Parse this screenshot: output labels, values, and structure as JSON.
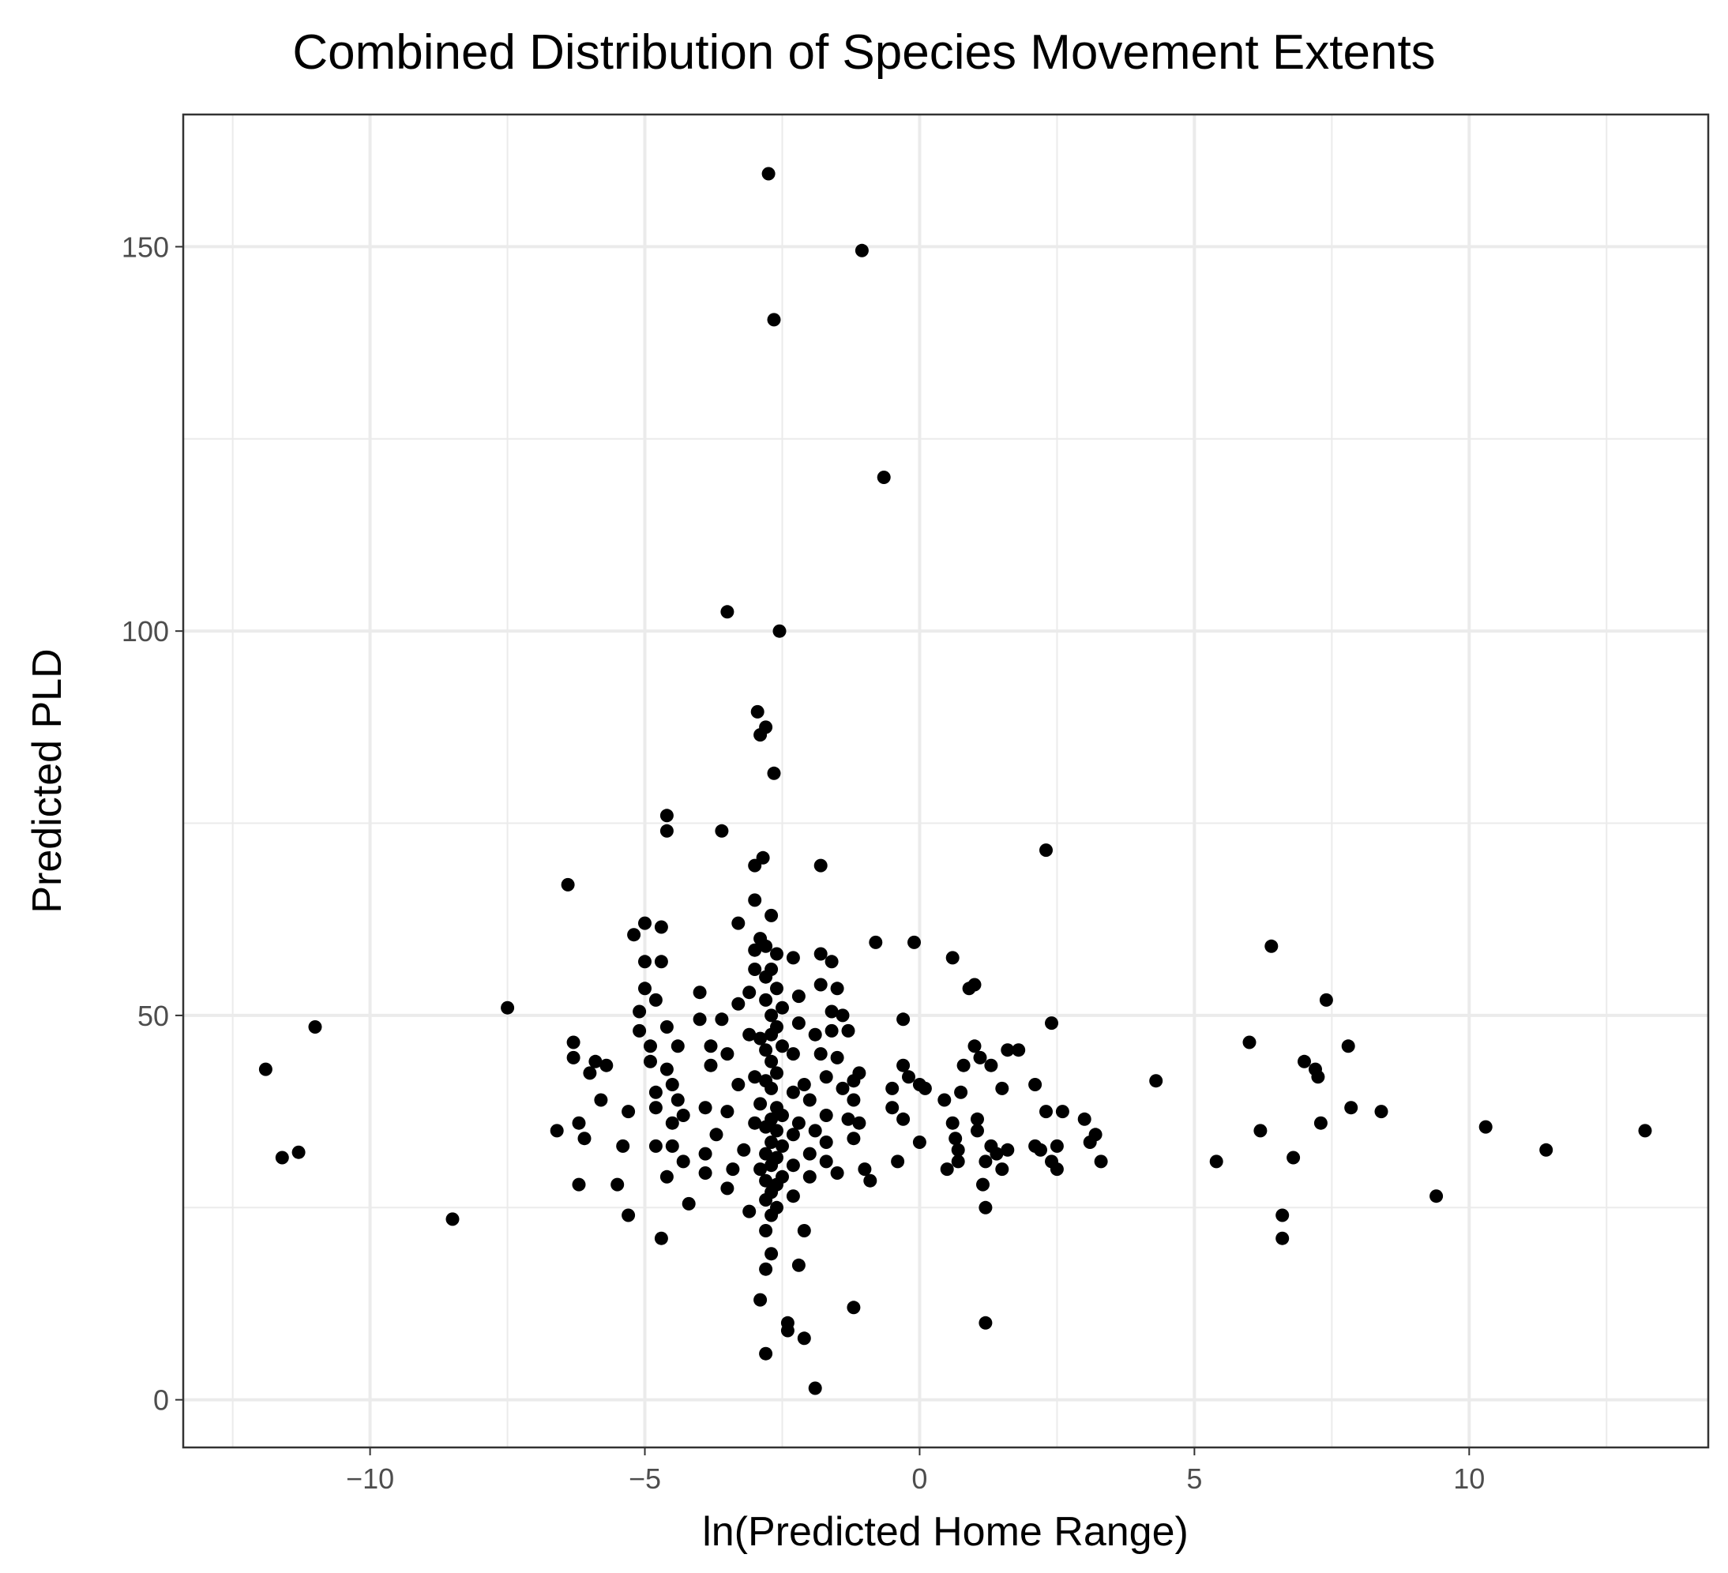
{
  "chart_data": {
    "type": "scatter",
    "title": "Combined Distribution of Species Movement Extents",
    "xlabel": "ln(Predicted Home Range)",
    "ylabel": "Predicted PLD",
    "xlim": [
      -13.4,
      14.35
    ],
    "ylim": [
      -6.2,
      167.2
    ],
    "xticks": [
      -10,
      -5,
      0,
      5,
      10
    ],
    "xtick_labels": [
      "−10",
      "−5",
      "0",
      "5",
      "10"
    ],
    "xminor": [
      -12.5,
      -7.5,
      -2.5,
      2.5,
      7.5,
      12.5
    ],
    "yticks": [
      0,
      50,
      100,
      150
    ],
    "ytick_labels": [
      "0",
      "50",
      "100",
      "150"
    ],
    "yminor": [
      25,
      75,
      125
    ],
    "grid": true,
    "legend": "none",
    "point_color": "#000000",
    "points": [
      [
        -11.9,
        43
      ],
      [
        -11.6,
        31.5
      ],
      [
        -11.3,
        32.2
      ],
      [
        -11.0,
        48.5
      ],
      [
        -8.5,
        23.5
      ],
      [
        -7.5,
        51
      ],
      [
        -6.6,
        35
      ],
      [
        -6.4,
        67
      ],
      [
        -6.3,
        46.5
      ],
      [
        -6.3,
        44.5
      ],
      [
        -6.2,
        36
      ],
      [
        -6.2,
        28
      ],
      [
        -6.1,
        34
      ],
      [
        -6.0,
        42.5
      ],
      [
        -5.9,
        44
      ],
      [
        -5.8,
        39
      ],
      [
        -5.7,
        43.5
      ],
      [
        -5.5,
        28
      ],
      [
        -5.4,
        33
      ],
      [
        -5.3,
        37.5
      ],
      [
        -5.3,
        24
      ],
      [
        -5.2,
        60.5
      ],
      [
        -5.1,
        50.5
      ],
      [
        -5.1,
        48
      ],
      [
        -5.0,
        57
      ],
      [
        -5.0,
        62
      ],
      [
        -5.0,
        53.5
      ],
      [
        -4.9,
        44
      ],
      [
        -4.9,
        46
      ],
      [
        -4.8,
        40
      ],
      [
        -4.8,
        52
      ],
      [
        -4.8,
        38
      ],
      [
        -4.8,
        33
      ],
      [
        -4.7,
        57
      ],
      [
        -4.7,
        61.5
      ],
      [
        -4.7,
        21
      ],
      [
        -4.6,
        48.5
      ],
      [
        -4.6,
        76
      ],
      [
        -4.6,
        74
      ],
      [
        -4.6,
        43
      ],
      [
        -4.6,
        29
      ],
      [
        -4.5,
        41
      ],
      [
        -4.5,
        36
      ],
      [
        -4.5,
        33
      ],
      [
        -4.4,
        39
      ],
      [
        -4.4,
        46
      ],
      [
        -4.3,
        31
      ],
      [
        -4.3,
        37
      ],
      [
        -4.2,
        25.5
      ],
      [
        -4.0,
        49.5
      ],
      [
        -4.0,
        53
      ],
      [
        -3.9,
        38
      ],
      [
        -3.9,
        32
      ],
      [
        -3.9,
        29.5
      ],
      [
        -3.8,
        46
      ],
      [
        -3.8,
        43.5
      ],
      [
        -3.7,
        34.5
      ],
      [
        -3.6,
        49.5
      ],
      [
        -3.6,
        74
      ],
      [
        -3.5,
        27.5
      ],
      [
        -3.5,
        45
      ],
      [
        -3.5,
        102.5
      ],
      [
        -3.5,
        37.5
      ],
      [
        -3.4,
        30
      ],
      [
        -3.3,
        62
      ],
      [
        -3.3,
        51.5
      ],
      [
        -3.3,
        41
      ],
      [
        -3.2,
        32.5
      ],
      [
        -3.1,
        47.5
      ],
      [
        -3.1,
        53
      ],
      [
        -3.1,
        24.5
      ],
      [
        -3.0,
        69.5
      ],
      [
        -3.0,
        65
      ],
      [
        -3.0,
        56
      ],
      [
        -3.0,
        58.5
      ],
      [
        -3.0,
        42
      ],
      [
        -3.0,
        36
      ],
      [
        -2.95,
        89.5
      ],
      [
        -2.9,
        86.5
      ],
      [
        -2.9,
        60
      ],
      [
        -2.9,
        47
      ],
      [
        -2.9,
        38.5
      ],
      [
        -2.9,
        30
      ],
      [
        -2.9,
        13
      ],
      [
        -2.85,
        70.5
      ],
      [
        -2.8,
        87.5
      ],
      [
        -2.8,
        59
      ],
      [
        -2.8,
        55
      ],
      [
        -2.8,
        52
      ],
      [
        -2.8,
        45.5
      ],
      [
        -2.8,
        41.5
      ],
      [
        -2.8,
        35.5
      ],
      [
        -2.8,
        32
      ],
      [
        -2.8,
        28.5
      ],
      [
        -2.8,
        26
      ],
      [
        -2.8,
        22
      ],
      [
        -2.8,
        17
      ],
      [
        -2.8,
        6
      ],
      [
        -2.75,
        159.5
      ],
      [
        -2.7,
        63
      ],
      [
        -2.7,
        56
      ],
      [
        -2.7,
        50
      ],
      [
        -2.7,
        47.5
      ],
      [
        -2.7,
        44
      ],
      [
        -2.7,
        40.5
      ],
      [
        -2.7,
        36.5
      ],
      [
        -2.7,
        33.5
      ],
      [
        -2.7,
        30.5
      ],
      [
        -2.7,
        27
      ],
      [
        -2.7,
        24
      ],
      [
        -2.7,
        19
      ],
      [
        -2.65,
        140.5
      ],
      [
        -2.65,
        81.5
      ],
      [
        -2.6,
        58
      ],
      [
        -2.6,
        53.5
      ],
      [
        -2.6,
        48.5
      ],
      [
        -2.6,
        42.5
      ],
      [
        -2.6,
        38
      ],
      [
        -2.6,
        35
      ],
      [
        -2.6,
        31.5
      ],
      [
        -2.6,
        28
      ],
      [
        -2.6,
        25
      ],
      [
        -2.55,
        100
      ],
      [
        -2.5,
        51
      ],
      [
        -2.5,
        46
      ],
      [
        -2.5,
        37
      ],
      [
        -2.5,
        33
      ],
      [
        -2.5,
        29
      ],
      [
        -2.4,
        10
      ],
      [
        -2.4,
        9
      ],
      [
        -2.3,
        57.5
      ],
      [
        -2.3,
        45
      ],
      [
        -2.3,
        40
      ],
      [
        -2.3,
        34.5
      ],
      [
        -2.3,
        30.5
      ],
      [
        -2.3,
        26.5
      ],
      [
        -2.2,
        52.5
      ],
      [
        -2.2,
        49
      ],
      [
        -2.2,
        36
      ],
      [
        -2.2,
        17.5
      ],
      [
        -2.1,
        41
      ],
      [
        -2.1,
        22
      ],
      [
        -2.1,
        8
      ],
      [
        -2.0,
        39
      ],
      [
        -2.0,
        32
      ],
      [
        -2.0,
        29
      ],
      [
        -1.9,
        1.5
      ],
      [
        -1.9,
        47.5
      ],
      [
        -1.9,
        35
      ],
      [
        -1.8,
        69.5
      ],
      [
        -1.8,
        58
      ],
      [
        -1.8,
        54
      ],
      [
        -1.8,
        45
      ],
      [
        -1.7,
        42
      ],
      [
        -1.7,
        37
      ],
      [
        -1.7,
        33.5
      ],
      [
        -1.7,
        31
      ],
      [
        -1.6,
        57
      ],
      [
        -1.6,
        50.5
      ],
      [
        -1.6,
        48
      ],
      [
        -1.5,
        53.5
      ],
      [
        -1.5,
        44.5
      ],
      [
        -1.5,
        29.5
      ],
      [
        -1.4,
        50
      ],
      [
        -1.4,
        40.5
      ],
      [
        -1.3,
        48
      ],
      [
        -1.3,
        36.5
      ],
      [
        -1.2,
        41.5
      ],
      [
        -1.2,
        39
      ],
      [
        -1.2,
        34
      ],
      [
        -1.2,
        12
      ],
      [
        -1.1,
        42.5
      ],
      [
        -1.1,
        36
      ],
      [
        -1.05,
        149.5
      ],
      [
        -1.0,
        30
      ],
      [
        -0.9,
        28.5
      ],
      [
        -0.8,
        59.5
      ],
      [
        -0.65,
        120
      ],
      [
        -0.5,
        40.5
      ],
      [
        -0.5,
        38
      ],
      [
        -0.4,
        31
      ],
      [
        -0.3,
        49.5
      ],
      [
        -0.3,
        43.5
      ],
      [
        -0.3,
        36.5
      ],
      [
        -0.2,
        42
      ],
      [
        -0.1,
        59.5
      ],
      [
        0.0,
        41
      ],
      [
        0.0,
        33.5
      ],
      [
        0.1,
        40.5
      ],
      [
        0.45,
        39
      ],
      [
        0.5,
        30
      ],
      [
        0.6,
        57.5
      ],
      [
        0.6,
        36
      ],
      [
        0.65,
        34
      ],
      [
        0.7,
        32.5
      ],
      [
        0.7,
        31
      ],
      [
        0.75,
        40
      ],
      [
        0.8,
        43.5
      ],
      [
        0.9,
        53.5
      ],
      [
        1.0,
        54
      ],
      [
        1.0,
        46
      ],
      [
        1.05,
        36.5
      ],
      [
        1.05,
        35
      ],
      [
        1.1,
        44.5
      ],
      [
        1.15,
        28
      ],
      [
        1.2,
        31
      ],
      [
        1.2,
        10
      ],
      [
        1.2,
        25
      ],
      [
        1.3,
        43.5
      ],
      [
        1.3,
        33
      ],
      [
        1.4,
        32
      ],
      [
        1.5,
        40.5
      ],
      [
        1.5,
        30
      ],
      [
        1.6,
        45.5
      ],
      [
        1.6,
        32.5
      ],
      [
        1.8,
        45.5
      ],
      [
        2.1,
        41
      ],
      [
        2.1,
        33
      ],
      [
        2.2,
        32.5
      ],
      [
        2.3,
        71.5
      ],
      [
        2.3,
        37.5
      ],
      [
        2.4,
        49
      ],
      [
        2.4,
        31
      ],
      [
        2.5,
        33
      ],
      [
        2.5,
        30
      ],
      [
        2.6,
        37.5
      ],
      [
        3.0,
        36.5
      ],
      [
        3.1,
        33.5
      ],
      [
        3.2,
        34.5
      ],
      [
        3.3,
        31
      ],
      [
        4.3,
        41.5
      ],
      [
        5.4,
        31
      ],
      [
        6.0,
        46.5
      ],
      [
        6.2,
        35
      ],
      [
        6.4,
        59
      ],
      [
        6.6,
        24
      ],
      [
        6.6,
        21
      ],
      [
        6.8,
        31.5
      ],
      [
        7.0,
        44
      ],
      [
        7.2,
        43
      ],
      [
        7.25,
        42
      ],
      [
        7.3,
        36
      ],
      [
        7.4,
        52
      ],
      [
        7.8,
        46
      ],
      [
        7.85,
        38
      ],
      [
        8.4,
        37.5
      ],
      [
        9.4,
        26.5
      ],
      [
        10.3,
        35.5
      ],
      [
        11.4,
        32.5
      ],
      [
        13.2,
        35
      ]
    ]
  }
}
